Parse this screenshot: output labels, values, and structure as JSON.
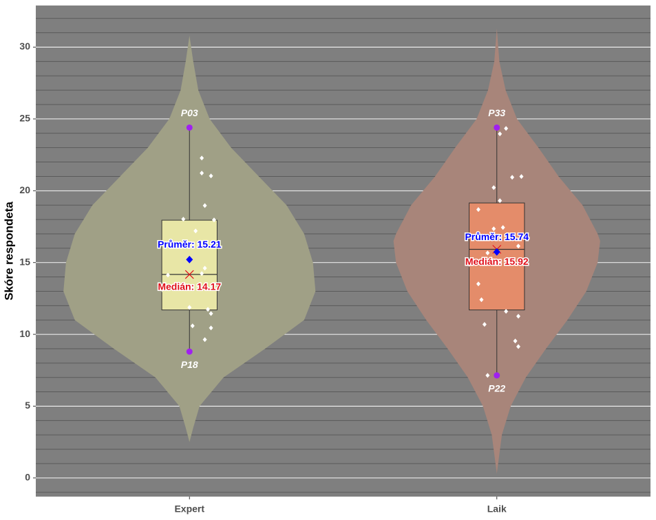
{
  "chart_data": {
    "type": "violin",
    "y_label": "Skóre respondeta",
    "categories": [
      "Expert",
      "Laik"
    ],
    "ylim": [
      -1.3,
      32.9
    ],
    "yticks": [
      0,
      5,
      10,
      15,
      20,
      25,
      30
    ],
    "minor_grid_step": 1,
    "grid": true,
    "violin_colors": [
      "#a0a086",
      "#a8857a"
    ],
    "box_colors": [
      "#e8e6a6",
      "#e48c6a"
    ],
    "point_color": "#ffffff",
    "extreme_color": "#a020f0",
    "mean_color": "#0000ff",
    "median_color": "#e0101a",
    "groups": [
      {
        "violin": {
          "y": [
            30.8,
            29,
            27,
            25,
            23,
            21,
            19,
            17,
            15,
            13,
            11,
            9,
            7,
            5,
            3.5,
            2.5
          ],
          "density": [
            0,
            0.03,
            0.07,
            0.16,
            0.33,
            0.55,
            0.77,
            0.91,
            0.98,
            1,
            0.91,
            0.6,
            0.27,
            0.08,
            0.03,
            0
          ]
        },
        "box": {
          "lower": 8.8,
          "q1": 11.7,
          "median": 14.17,
          "q3": 17.95,
          "upper": 24.4
        },
        "mean": 15.21,
        "mean_label": "Průměr: 15.21",
        "median_label": "Medián: 14.17",
        "extremes": [
          {
            "label": "P03",
            "value": 24.4
          },
          {
            "label": "P18",
            "value": 8.8
          }
        ],
        "points": {
          "x": [
            0.04,
            0.04,
            0.07,
            0.05,
            -0.02,
            0.08,
            0.02,
            0.05,
            0.04,
            -0.07,
            0,
            0.06,
            0.07,
            0.01,
            0.07,
            0.05
          ],
          "y": [
            22.28,
            21.23,
            21.03,
            18.97,
            18.02,
            17.97,
            17.2,
            14.61,
            14.23,
            14.13,
            11.88,
            11.74,
            11.45,
            10.59,
            10.45,
            9.63
          ]
        }
      },
      {
        "violin": {
          "y": [
            31.3,
            29,
            27,
            25,
            23,
            21,
            19,
            17,
            16.5,
            15,
            13,
            11,
            9,
            7,
            5,
            3,
            0.3
          ],
          "density": [
            0,
            0.02,
            0.07,
            0.16,
            0.33,
            0.49,
            0.68,
            0.8,
            0.82,
            0.8,
            0.71,
            0.56,
            0.39,
            0.23,
            0.11,
            0.04,
            0
          ]
        },
        "box": {
          "lower": 7.14,
          "q1": 11.7,
          "median": 15.92,
          "q3": 19.15,
          "upper": 24.4
        },
        "mean": 15.74,
        "mean_label": "Průměr: 15.74",
        "median_label": "Medián: 15.92",
        "extremes": [
          {
            "label": "P33",
            "value": 24.4
          },
          {
            "label": "P22",
            "value": 7.14
          }
        ],
        "points": {
          "x": [
            0.03,
            0.01,
            -0.01,
            0.05,
            0.08,
            0.01,
            -0.06,
            -0.01,
            0.02,
            0.07,
            -0.03,
            -0.06,
            -0.05,
            -0.04,
            0.03,
            0.07,
            0.06,
            0.07,
            -0.03
          ],
          "y": [
            24.34,
            23.96,
            20.22,
            20.94,
            20.99,
            19.31,
            18.69,
            17.35,
            17.44,
            16.15,
            15.67,
            13.51,
            12.41,
            10.69,
            11.6,
            11.26,
            9.54,
            9.15,
            7.14
          ]
        }
      }
    ]
  }
}
